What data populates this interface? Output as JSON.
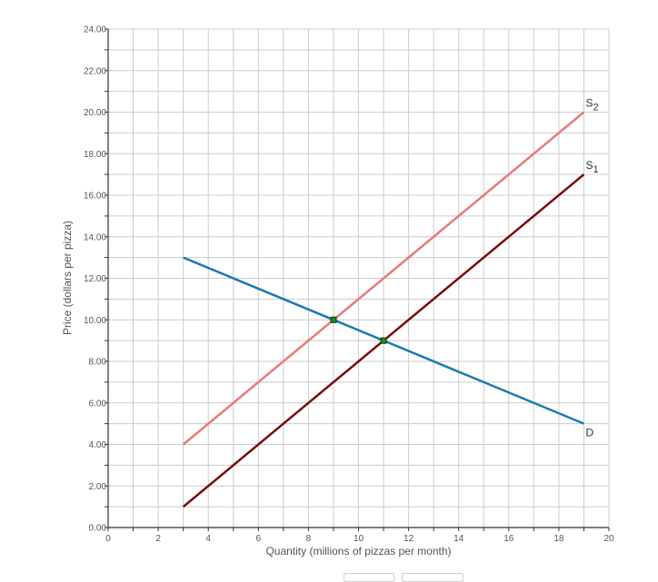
{
  "chart_data": {
    "type": "line",
    "title": "",
    "xlabel": "Quantity (millions of pizzas per month)",
    "ylabel": "Price (dollars per pizza)",
    "xlim": [
      0,
      20
    ],
    "ylim": [
      0,
      24
    ],
    "x_major_ticks": [
      0,
      2,
      4,
      6,
      8,
      10,
      12,
      14,
      16,
      18,
      20
    ],
    "x_tick_labels": [
      "0",
      "2",
      "4",
      "6",
      "8",
      "10",
      "12",
      "14",
      "16",
      "18",
      "20"
    ],
    "x_minor_step": 1,
    "y_major_ticks": [
      0,
      2,
      4,
      6,
      8,
      10,
      12,
      14,
      16,
      18,
      20,
      22,
      24
    ],
    "y_tick_labels": [
      "0.00",
      "2.00",
      "4.00",
      "6.00",
      "8.00",
      "10.00",
      "12.00",
      "14.00",
      "16.00",
      "18.00",
      "20.00",
      "22.00",
      "24.00"
    ],
    "y_minor_step": 1,
    "grid": true,
    "series": [
      {
        "name": "S2",
        "label_main": "S",
        "label_sub": "2",
        "color": "#e87a7a",
        "points": [
          [
            3,
            4
          ],
          [
            19,
            20
          ]
        ]
      },
      {
        "name": "S1",
        "label_main": "S",
        "label_sub": "1",
        "color": "#7a0c0c",
        "points": [
          [
            3,
            1
          ],
          [
            19,
            17
          ]
        ]
      },
      {
        "name": "D",
        "label_main": "D",
        "label_sub": "",
        "color": "#1a7ab0",
        "points": [
          [
            3,
            13
          ],
          [
            19,
            5
          ]
        ]
      }
    ],
    "equilibrium_points": [
      {
        "name": "equilibrium-S2-D",
        "x": 9,
        "y": 10,
        "color": "#1a8a1a"
      },
      {
        "name": "equilibrium-S1-D",
        "x": 11,
        "y": 9,
        "color": "#1a8a1a"
      }
    ]
  },
  "style": {
    "grid_color": "#cccccc",
    "axis_color": "#333333",
    "tick_label_color": "#555555"
  }
}
